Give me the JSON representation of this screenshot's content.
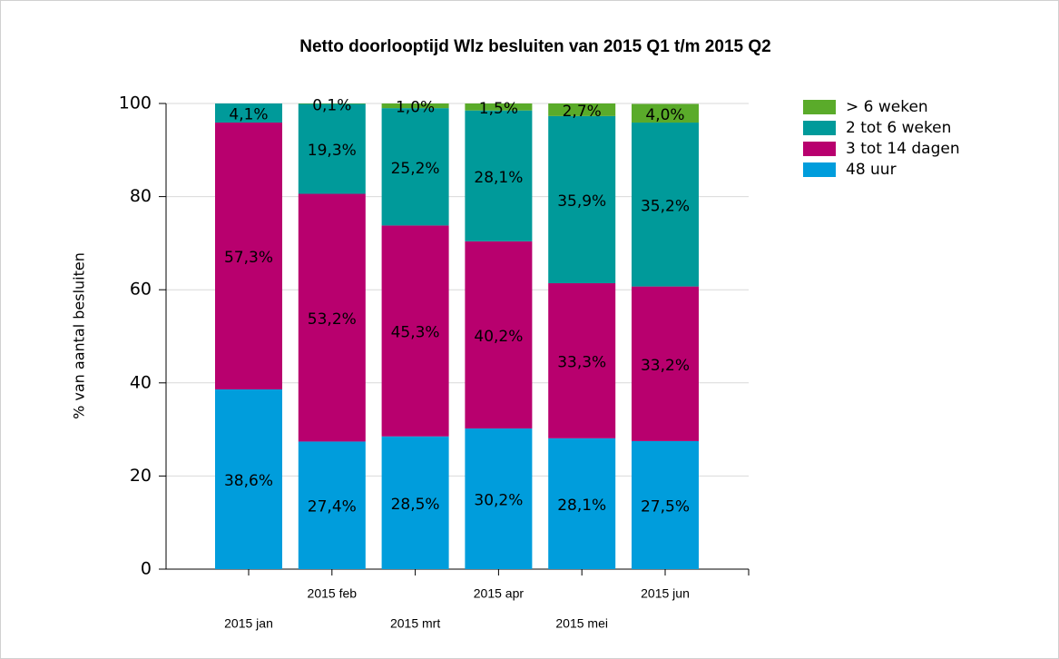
{
  "chart_data": {
    "type": "stacked_bar",
    "title": "Netto doorlooptijd Wlz besluiten van 2015 Q1 t/m 2015 Q2",
    "y_label": "% van aantal besluiten",
    "categories": [
      "2015 jan",
      "2015 feb",
      "2015 mrt",
      "2015 apr",
      "2015 mei",
      "2015 jun"
    ],
    "series": [
      {
        "name": "48 uur",
        "color": "#009ddc",
        "values": [
          38.6,
          27.4,
          28.5,
          30.2,
          28.1,
          27.5
        ],
        "value_labels": [
          "38,6%",
          "27,4%",
          "28,5%",
          "30,2%",
          "28,1%",
          "27,5%"
        ]
      },
      {
        "name": "3 tot 14 dagen",
        "color": "#b8006e",
        "values": [
          57.3,
          53.2,
          45.3,
          40.2,
          33.3,
          33.2
        ],
        "value_labels": [
          "57,3%",
          "53,2%",
          "45,3%",
          "40,2%",
          "33,3%",
          "33,2%"
        ]
      },
      {
        "name": "2 tot 6 weken",
        "color": "#009a9a",
        "values": [
          4.1,
          19.3,
          25.2,
          28.1,
          35.9,
          35.2
        ],
        "value_labels": [
          "4,1%",
          "19,3%",
          "25,2%",
          "28,1%",
          "35,9%",
          "35,2%"
        ]
      },
      {
        "name": "> 6 weken",
        "color": "#5aab2a",
        "values": [
          null,
          0.1,
          1.0,
          1.5,
          2.7,
          4.0
        ],
        "value_labels": [
          null,
          "0,1%",
          "1,0%",
          "1,5%",
          "2,7%",
          "4,0%"
        ]
      }
    ],
    "ylim": [
      0,
      100
    ],
    "yticks": [
      0,
      20,
      40,
      60,
      80,
      100
    ],
    "grid": true,
    "legend": "right"
  }
}
